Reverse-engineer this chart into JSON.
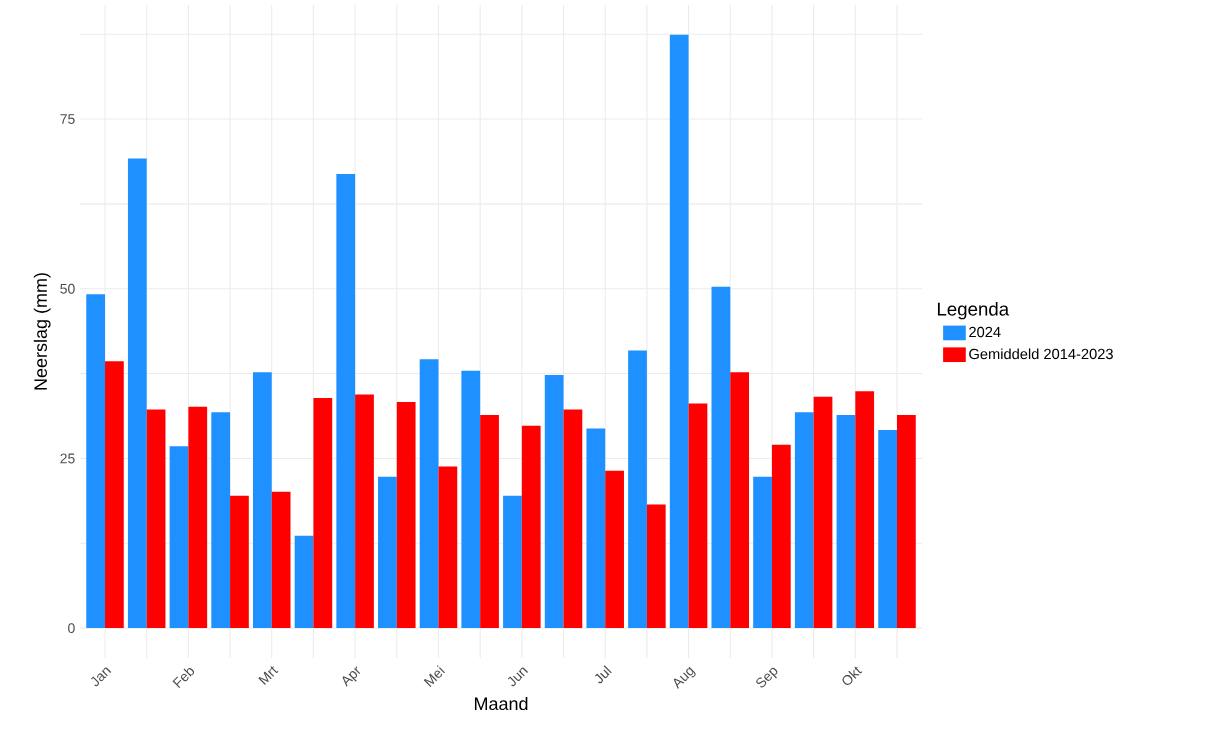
{
  "chart_data": {
    "type": "bar",
    "xlabel": "Maand",
    "ylabel": "Neerslag (mm)",
    "legend_title": "Legenda",
    "categories": [
      "Jan",
      null,
      "Feb",
      null,
      "Mrt",
      null,
      "Apr",
      null,
      "Mei",
      null,
      "Jun",
      null,
      "Jul",
      null,
      "Aug",
      null,
      "Sep",
      null,
      "Okt",
      null
    ],
    "series": [
      {
        "name": "2024",
        "color": "#1e90ff",
        "values": [
          49.2,
          69.2,
          26.8,
          31.8,
          37.7,
          13.6,
          66.9,
          22.3,
          39.6,
          37.9,
          19.5,
          37.3,
          29.4,
          40.9,
          87.4,
          50.3,
          22.3,
          31.8,
          31.4,
          29.2
        ]
      },
      {
        "name": "Gemiddeld 2014-2023",
        "color": "#ff0000",
        "values": [
          39.3,
          32.2,
          32.6,
          19.5,
          20.1,
          33.9,
          34.4,
          33.3,
          23.8,
          31.4,
          29.8,
          32.2,
          23.2,
          18.2,
          33.1,
          37.7,
          27.0,
          34.1,
          34.9,
          31.4
        ]
      }
    ],
    "ylim": [
      -4.4,
      91.8
    ],
    "yticks": [
      0,
      {
        "value": 12.5,
        "label": null
      },
      25,
      {
        "value": 37.5,
        "label": null
      },
      50,
      {
        "value": 62.5,
        "label": null
      },
      75,
      {
        "value": 87.5,
        "label": null
      }
    ],
    "grid": true,
    "legend": "right"
  }
}
